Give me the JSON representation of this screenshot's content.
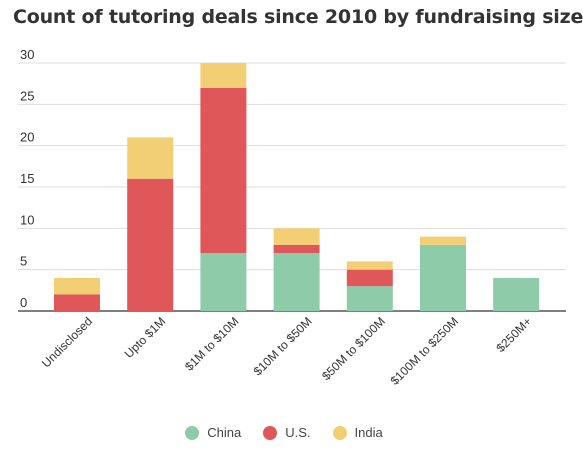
{
  "chart_data": {
    "type": "bar",
    "stacked": true,
    "title": "Count of tutoring deals since 2010 by fundraising size",
    "xlabel": "",
    "ylabel": "",
    "ylim": [
      0,
      30
    ],
    "yticks": [
      0,
      5,
      10,
      15,
      20,
      25,
      30
    ],
    "grid": true,
    "legend": "bottom",
    "categories": [
      "Undisclosed",
      "Upto $1M",
      "$1M to $10M",
      "$10M to $50M",
      "$50M to $100M",
      "$100M to $250M",
      "$250M+"
    ],
    "series": [
      {
        "name": "China",
        "color": "#8ecba8",
        "values": [
          0,
          0,
          7,
          7,
          3,
          8,
          4
        ]
      },
      {
        "name": "U.S.",
        "color": "#e05759",
        "values": [
          2,
          16,
          20,
          1,
          2,
          0,
          0
        ]
      },
      {
        "name": "India",
        "color": "#f2cf75",
        "values": [
          2,
          5,
          3,
          2,
          1,
          1,
          0
        ]
      }
    ]
  }
}
